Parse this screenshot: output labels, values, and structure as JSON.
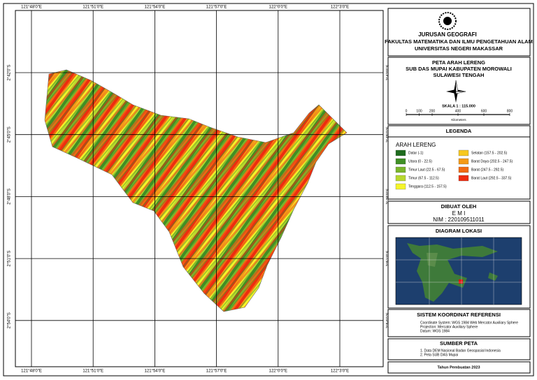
{
  "map": {
    "lon_labels": [
      "121°48'0\"E",
      "121°51'0\"E",
      "121°54'0\"E",
      "121°57'0\"E",
      "122°0'0\"E",
      "122°3'0\"E"
    ],
    "lat_labels": [
      "2°42'0\"S",
      "2°45'0\"S",
      "2°48'0\"S",
      "2°51'0\"S",
      "2°54'0\"S"
    ]
  },
  "header": {
    "lines": [
      "JURUSAN GEOGRAFI",
      "FAKULTAS MATEMATIKA DAN ILMU PENGETAHUAN ALAM",
      "UNIVERSITAS NEGERI MAKASSAR"
    ]
  },
  "title": {
    "lines": [
      "PETA ARAH LERENG",
      "SUB DAS MUPAI KABUPATEN MOROWALI",
      "SULAWESI TENGAH"
    ],
    "scale": "SKALA 1 : 115.000",
    "scale_ticks": [
      0,
      100,
      200,
      400,
      600,
      800
    ],
    "scale_unit": "Kilometers"
  },
  "legend": {
    "title": "LEGENDA",
    "subtitle": "ARAH LERENG",
    "items": [
      {
        "label": "Datar (-1)",
        "color": "#1e6b1e"
      },
      {
        "label": "Utara (0 - 22.5)",
        "color": "#3f8f25"
      },
      {
        "label": "Timur Laut (22.5 - 67.5)",
        "color": "#7ab62b"
      },
      {
        "label": "Timur (67.5 - 112.5)",
        "color": "#b8d82e"
      },
      {
        "label": "Tenggara (112.5 - 157.5)",
        "color": "#f5f52a"
      },
      {
        "label": "Selatan (157.5 - 202.5)",
        "color": "#f7c81e"
      },
      {
        "label": "Barat Daya (202.5 - 247.5)",
        "color": "#f59a16"
      },
      {
        "label": "Barat (247.5 - 292.5)",
        "color": "#f26a12"
      },
      {
        "label": "Barat Laut (292.5 - 337.5)",
        "color": "#ee2d10"
      }
    ]
  },
  "author": {
    "title": "DIBUAT OLEH",
    "name": "E M I",
    "nim": "NIM : 220109511011"
  },
  "location": {
    "title": "DIAGRAM LOKASI"
  },
  "crs": {
    "title": "SISTEM KOORDINAT REFERENSI",
    "lines": [
      "Coordinate System: WGS 1984 Web Mercator Auxiliary Sphere",
      "Projection: Mercator Auxiliary Sphere",
      "Datum: WGS 1984"
    ]
  },
  "source": {
    "title": "SUMBER PETA",
    "lines": [
      "1. Data DEM Nasional Badan Geospasial Indonesia",
      "2. Peta SUB DAS Mupai"
    ]
  },
  "footer": {
    "year": "Tahun Pembuatan 2023"
  }
}
